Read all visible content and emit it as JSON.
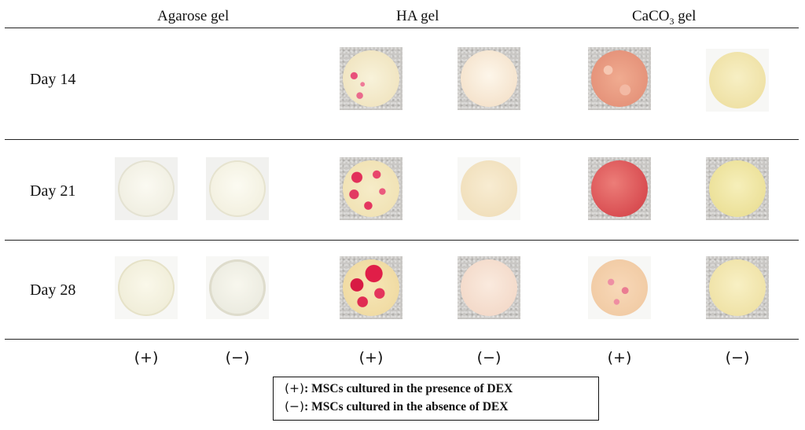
{
  "columns": {
    "agarose": "Agarose gel",
    "ha": "HA gel",
    "caco3_prefix": "CaCO",
    "caco3_sub": "3",
    "caco3_suffix": " gel"
  },
  "rows": {
    "day14": "Day 14",
    "day21": "Day 21",
    "day28": "Day 28"
  },
  "signs": {
    "plus": "(+)",
    "minus": "(−)"
  },
  "legend": {
    "plus_marker": "(+)",
    "plus_text": ": MSCs cultured in the presence of DEX",
    "minus_marker": "(−)",
    "minus_text": ": MSCs cultured in the absence of DEX"
  },
  "colors": {
    "agarose_disc": "#f2f1e8",
    "ha_plus_disc": "#f4ead0",
    "ha_minus_disc": "#f6e6d2",
    "caco3_plus_disc": "#e99a80",
    "caco3_minus_disc": "#f2e8b0",
    "stain_red": "#e0284f"
  },
  "photos": [
    "agarose-plus-day21-photo",
    "agarose-minus-day21-photo",
    "agarose-plus-day28-photo",
    "agarose-minus-day28-photo",
    "ha-plus-day14-photo",
    "ha-minus-day14-photo",
    "ha-plus-day21-photo",
    "ha-minus-day21-photo",
    "ha-plus-day28-photo",
    "ha-minus-day28-photo",
    "caco3-plus-day14-photo",
    "caco3-minus-day14-photo",
    "caco3-plus-day21-photo",
    "caco3-minus-day21-photo",
    "caco3-plus-day28-photo",
    "caco3-minus-day28-photo"
  ]
}
